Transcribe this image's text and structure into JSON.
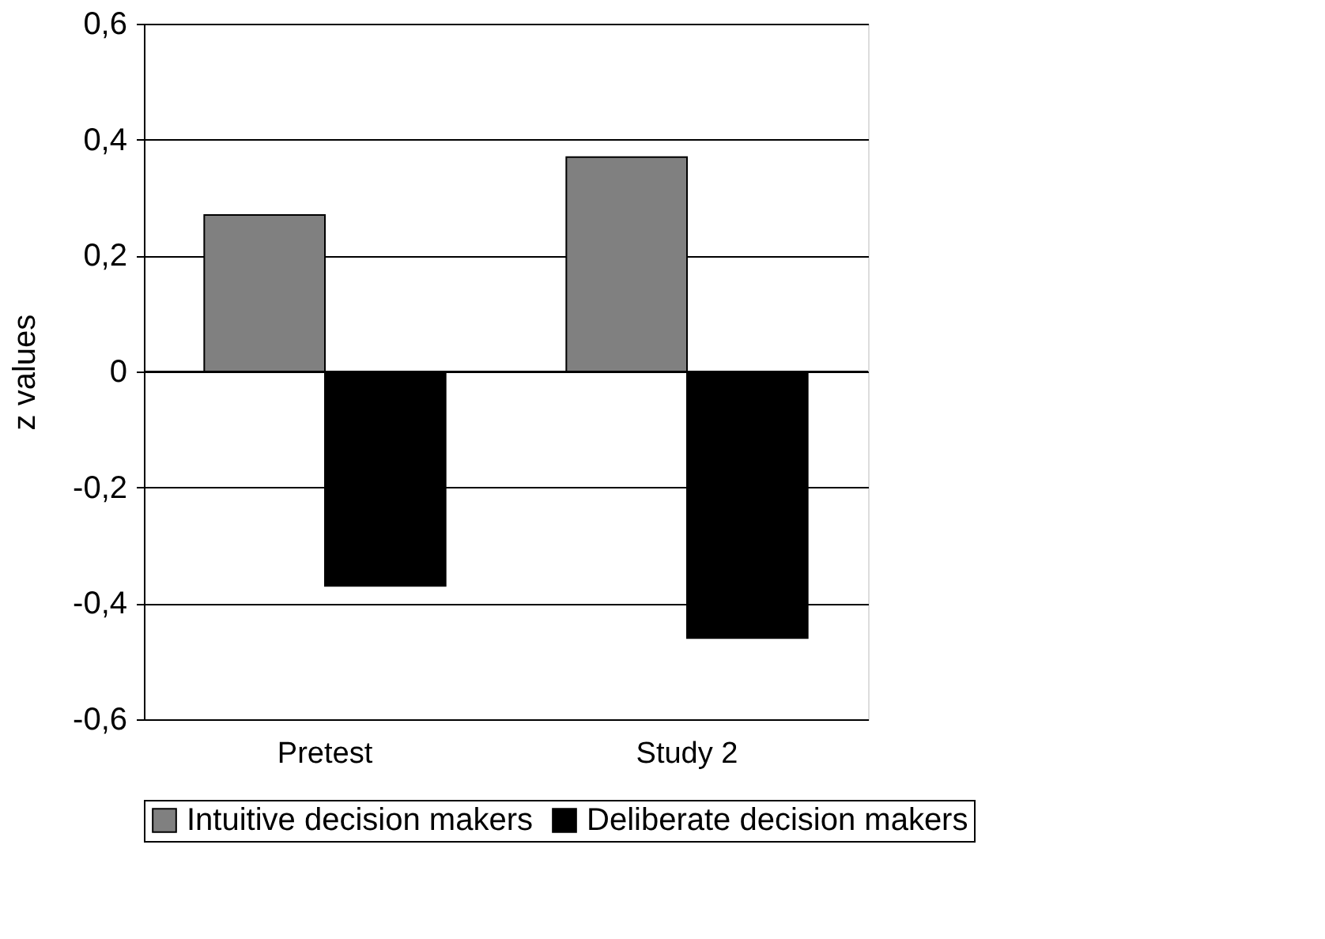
{
  "chart_data": {
    "type": "bar",
    "ylabel": "z values",
    "categories": [
      "Pretest",
      "Study 2"
    ],
    "series": [
      {
        "name": "Intuitive decision makers",
        "color": "#808080",
        "values": [
          0.27,
          0.37
        ]
      },
      {
        "name": "Deliberate decision makers",
        "color": "#000000",
        "values": [
          -0.37,
          -0.46
        ]
      }
    ],
    "ylim": [
      -0.6,
      0.6
    ],
    "yticks": [
      {
        "value": -0.6,
        "label": "-0,6"
      },
      {
        "value": -0.4,
        "label": "-0,4"
      },
      {
        "value": -0.2,
        "label": "-0,2"
      },
      0,
      {
        "value": 0.2,
        "label": "0,2"
      },
      {
        "value": 0.4,
        "label": "0,4"
      },
      {
        "value": 0.6,
        "label": "0,6"
      }
    ],
    "grid": "y",
    "legend": "bottom"
  }
}
